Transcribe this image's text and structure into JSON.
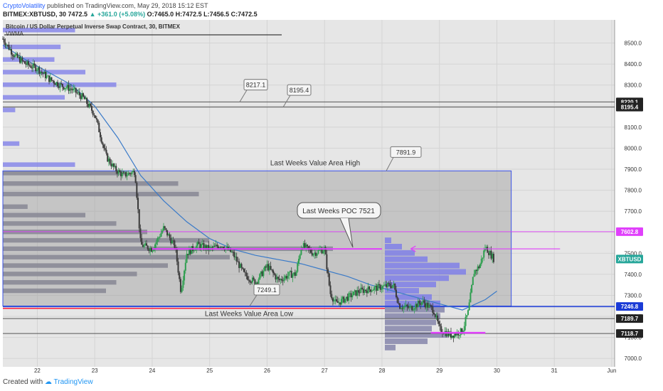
{
  "header": {
    "author": "CryptoVolatility",
    "published": "published on TradingView.com, May 29, 2018 15:12 EST",
    "symbol": "BITMEX:XBTUSD, 30",
    "last": "7472.5",
    "change": "+361.0 (+5.08%)",
    "ohlc": "O:7465.0 H:7472.5 L:7456.5 C:7472.5"
  },
  "footer": {
    "created_with": "Created with",
    "brand": "TradingView"
  },
  "chart_data": {
    "type": "candlestick",
    "title": "Bitcoin / US Dollar Perpetual Inverse Swap Contract, 30, BITMEX",
    "indicator": "VWMA",
    "ylim": [
      6960,
      8610
    ],
    "y_ticks": [
      7000,
      7100,
      7200,
      7300,
      7400,
      7500,
      7600,
      7700,
      7800,
      7900,
      8000,
      8100,
      8200,
      8300,
      8400,
      8500
    ],
    "x_ticks": [
      "22",
      "23",
      "24",
      "25",
      "26",
      "27",
      "28",
      "29",
      "30",
      "31",
      "Jun"
    ],
    "price_path": [
      [
        21.4,
        8520
      ],
      [
        21.6,
        8440
      ],
      [
        21.8,
        8400
      ],
      [
        22.0,
        8380
      ],
      [
        22.2,
        8330
      ],
      [
        22.4,
        8300
      ],
      [
        22.6,
        8280
      ],
      [
        22.8,
        8240
      ],
      [
        23.0,
        8160
      ],
      [
        23.1,
        8060
      ],
      [
        23.2,
        7960
      ],
      [
        23.35,
        7900
      ],
      [
        23.5,
        7870
      ],
      [
        23.6,
        7880
      ],
      [
        23.7,
        7890
      ],
      [
        23.8,
        7540
      ],
      [
        24.0,
        7520
      ],
      [
        24.2,
        7620
      ],
      [
        24.4,
        7530
      ],
      [
        24.5,
        7320
      ],
      [
        24.6,
        7500
      ],
      [
        24.8,
        7540
      ],
      [
        25.0,
        7520
      ],
      [
        25.2,
        7540
      ],
      [
        25.4,
        7500
      ],
      [
        25.6,
        7400
      ],
      [
        25.8,
        7360
      ],
      [
        26.0,
        7440
      ],
      [
        26.2,
        7370
      ],
      [
        26.4,
        7400
      ],
      [
        26.5,
        7400
      ],
      [
        26.6,
        7540
      ],
      [
        26.8,
        7500
      ],
      [
        27.0,
        7520
      ],
      [
        27.1,
        7310
      ],
      [
        27.2,
        7260
      ],
      [
        27.4,
        7290
      ],
      [
        27.6,
        7320
      ],
      [
        27.8,
        7330
      ],
      [
        28.0,
        7340
      ],
      [
        28.2,
        7350
      ],
      [
        28.3,
        7250
      ],
      [
        28.5,
        7240
      ],
      [
        28.7,
        7270
      ],
      [
        28.9,
        7230
      ],
      [
        29.0,
        7140
      ],
      [
        29.2,
        7110
      ],
      [
        29.4,
        7130
      ],
      [
        29.5,
        7220
      ],
      [
        29.6,
        7410
      ],
      [
        29.7,
        7440
      ],
      [
        29.8,
        7530
      ],
      [
        29.95,
        7472.5
      ]
    ],
    "vwma_path": [
      [
        21.4,
        8490
      ],
      [
        21.8,
        8420
      ],
      [
        22.2,
        8360
      ],
      [
        22.6,
        8300
      ],
      [
        23.0,
        8200
      ],
      [
        23.4,
        8050
      ],
      [
        23.8,
        7870
      ],
      [
        24.2,
        7750
      ],
      [
        24.6,
        7650
      ],
      [
        25.0,
        7570
      ],
      [
        25.4,
        7520
      ],
      [
        25.8,
        7490
      ],
      [
        26.2,
        7470
      ],
      [
        26.6,
        7450
      ],
      [
        27.0,
        7420
      ],
      [
        27.4,
        7390
      ],
      [
        27.8,
        7350
      ],
      [
        28.2,
        7320
      ],
      [
        28.6,
        7290
      ],
      [
        29.0,
        7260
      ],
      [
        29.4,
        7230
      ],
      [
        29.8,
        7280
      ],
      [
        30.0,
        7320
      ]
    ],
    "levels": [
      {
        "value": 8220.1,
        "label": "8220.1",
        "color": "#333333"
      },
      {
        "value": 8195.4,
        "label": "8195.4",
        "color": "#333333"
      },
      {
        "value": 7602.8,
        "label": "7602.8",
        "color": "#e040fb"
      },
      {
        "value": 7472.5,
        "label": "XBTUSD",
        "color": "#26a69a"
      },
      {
        "value": 7246.8,
        "label": "7246.8",
        "color": "#1a3bd6"
      },
      {
        "value": 7189.7,
        "label": "7189.7",
        "color": "#333333"
      },
      {
        "value": 7118.7,
        "label": "7118.7",
        "color": "#333333"
      }
    ],
    "value_area": {
      "high": 7891.9,
      "low": 7249.1,
      "poc": 7521,
      "high_label": "Last Weeks Value Area High",
      "low_label": "Last Weeks Value Area Low",
      "poc_label": "Last Weeks POC 7521"
    },
    "callouts": [
      "8217.1",
      "8195.4",
      "7891.9",
      "7249.1"
    ],
    "volume_profile_left": [
      [
        8560,
        35
      ],
      [
        8480,
        28
      ],
      [
        8420,
        25
      ],
      [
        8360,
        40
      ],
      [
        8300,
        55
      ],
      [
        8240,
        30
      ],
      [
        8180,
        6
      ],
      [
        8020,
        8
      ],
      [
        7920,
        35
      ],
      [
        7880,
        60
      ],
      [
        7830,
        85
      ],
      [
        7780,
        95
      ],
      [
        7720,
        12
      ],
      [
        7680,
        40
      ],
      [
        7640,
        55
      ],
      [
        7600,
        70
      ],
      [
        7560,
        100
      ],
      [
        7520,
        160
      ],
      [
        7480,
        110
      ],
      [
        7440,
        80
      ],
      [
        7400,
        65
      ],
      [
        7360,
        55
      ],
      [
        7320,
        50
      ]
    ],
    "volume_profile_right": [
      [
        7560,
        3
      ],
      [
        7530,
        8
      ],
      [
        7500,
        14
      ],
      [
        7470,
        20
      ],
      [
        7440,
        35
      ],
      [
        7410,
        38
      ],
      [
        7380,
        30
      ],
      [
        7350,
        24
      ],
      [
        7320,
        16
      ],
      [
        7290,
        22
      ],
      [
        7260,
        26
      ],
      [
        7230,
        28
      ],
      [
        7200,
        26
      ],
      [
        7170,
        24
      ],
      [
        7140,
        22
      ],
      [
        7110,
        30
      ],
      [
        7080,
        20
      ],
      [
        7050,
        5
      ]
    ]
  }
}
